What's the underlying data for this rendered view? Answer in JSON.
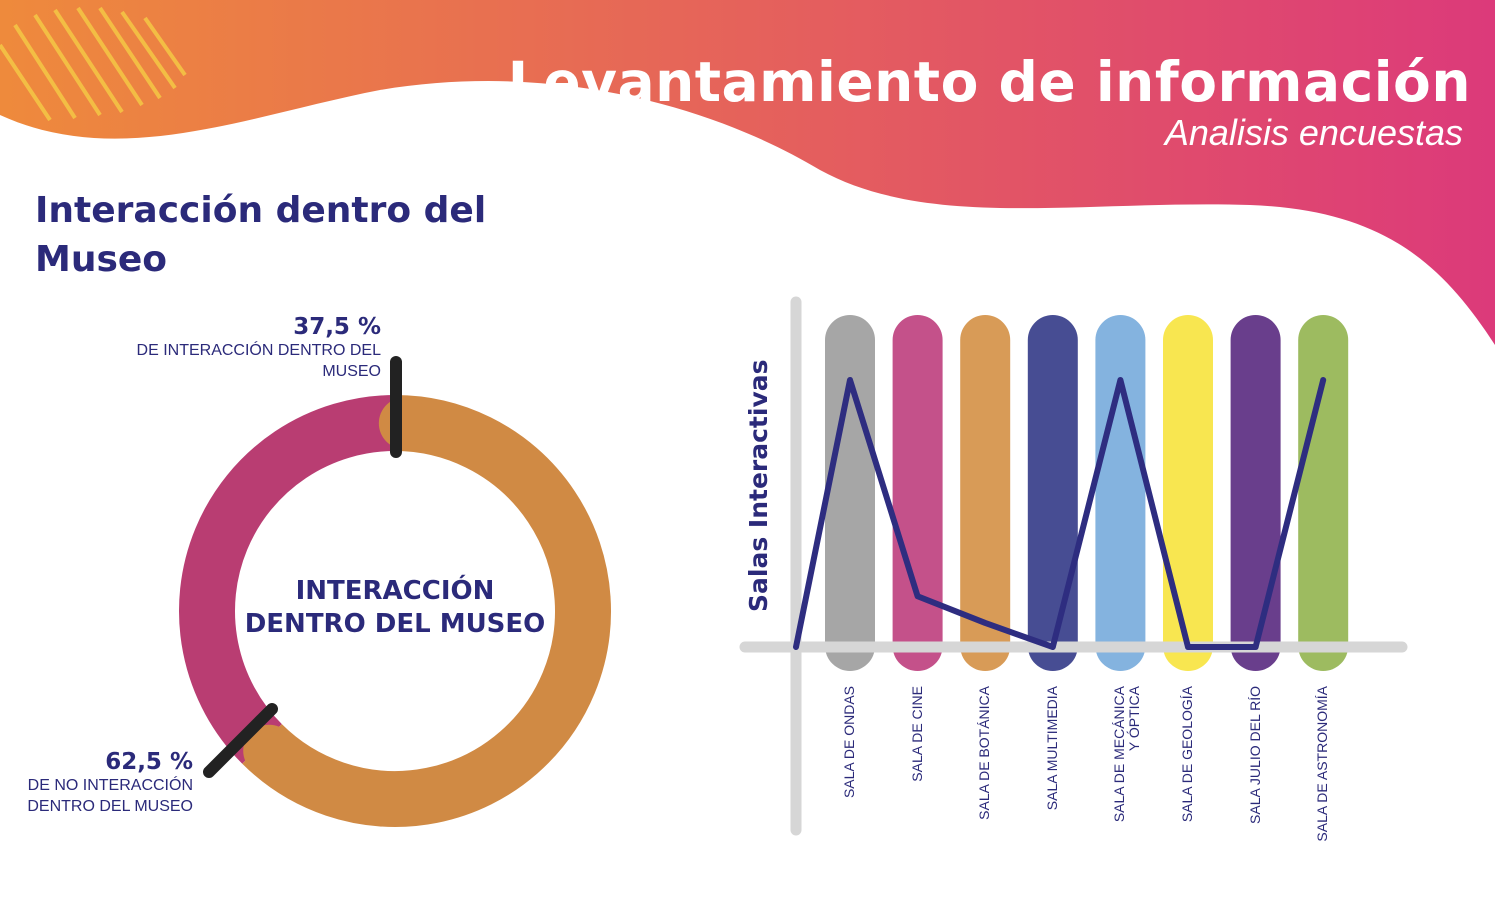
{
  "header": {
    "title": "Levantamiento de información",
    "subtitle": "Analisis encuestas"
  },
  "colors": {
    "gradient_start": "#ee8a3c",
    "gradient_end": "#dc3a7a",
    "text": "#2b2a7a",
    "donut_interaction": "#b93d72",
    "donut_no_interaction": "#d08a44",
    "line": "#2e2d80",
    "axis": "#d6d6d6"
  },
  "section_title": "Interacción dentro del Museo",
  "chart_data": [
    {
      "type": "pie",
      "variant": "donut",
      "center_label": "INTERACCIÓN DENTRO DEL MUSEO",
      "slices": [
        {
          "value": 37.5,
          "percent_label": "37,5 %",
          "label": "DE INTERACCIÓN DENTRO DEL MUSEO",
          "color": "#b93d72"
        },
        {
          "value": 62.5,
          "percent_label": "62,5 %",
          "label": "DE NO INTERACCIÓN DENTRO DEL MUSEO",
          "color": "#d08a44"
        }
      ]
    },
    {
      "type": "line",
      "ylabel": "Salas Interactivas",
      "ylim": [
        0,
        1
      ],
      "grid": false,
      "categories": [
        "SALA DE ONDAS",
        "SALA DE CINE",
        "SALA DE BOTÁNICA",
        "SALA MULTIMEDIA",
        "SALA DE MECÁNICA\nY ÓPTICA",
        "SALA DE GEOLOGÍA",
        "SALA JULIO DEL RÍO",
        "SALA DE ASTRONOMÍA"
      ],
      "category_colors": [
        "#a6a6a6",
        "#c4518a",
        "#d89b57",
        "#474d93",
        "#84b3df",
        "#f8e650",
        "#693e8c",
        "#9dbb60"
      ],
      "origin_value": 0,
      "values": [
        1.0,
        0.19,
        0.09,
        0.0,
        1.0,
        0.0,
        0.0,
        1.0
      ]
    }
  ]
}
